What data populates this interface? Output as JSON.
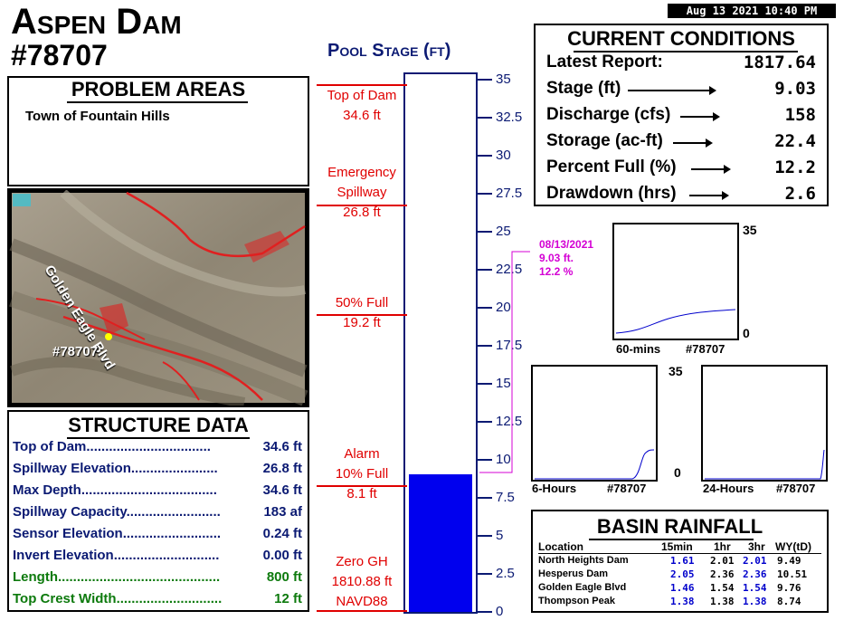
{
  "header": {
    "title_line1": "Aspen Dam",
    "title_line2": "#78707",
    "timestamp": "Aug 13 2021 10:40 PM"
  },
  "problem_areas": {
    "title": "PROBLEM AREAS",
    "text": "Town of Fountain Hills"
  },
  "map": {
    "road_label": "Golden Eagle Blvd",
    "site_label": "#78707"
  },
  "structure_data": {
    "title": "STRUCTURE DATA",
    "rows": [
      {
        "label": "Top of Dam.................................",
        "value": "34.6 ft"
      },
      {
        "label": "Spillway Elevation.......................",
        "value": "26.8 ft"
      },
      {
        "label": "Max Depth....................................",
        "value": "34.6 ft"
      },
      {
        "label": "Spillway Capacity.........................",
        "value": "183 af"
      },
      {
        "label": "Sensor Elevation..........................",
        "value": "0.24 ft"
      },
      {
        "label": "Invert Elevation............................",
        "value": "0.00 ft"
      },
      {
        "label": "Length...........................................",
        "value": "800 ft"
      },
      {
        "label": "Top Crest Width............................",
        "value": "12 ft"
      }
    ]
  },
  "pool_stage": {
    "title": "Pool Stage (ft)",
    "fill_value_ft": 9.03,
    "ymin": 0,
    "ymax": 35,
    "ticks": [
      "35",
      "32.5",
      "30",
      "27.5",
      "25",
      "22.5",
      "20",
      "17.5",
      "15",
      "12.5",
      "10",
      "7.5",
      "5",
      "2.5",
      "0"
    ],
    "markers": [
      {
        "line1": "Top of Dam",
        "line2": "34.6 ft"
      },
      {
        "line1": "Emergency",
        "line2": "Spillway",
        "line3": "26.8 ft"
      },
      {
        "line1": "50% Full",
        "line2": "19.2 ft"
      },
      {
        "line1": "Alarm",
        "line2": "10% Full",
        "line3": "8.1 ft"
      },
      {
        "line1": "Zero GH",
        "line2": "1810.88 ft",
        "line3": "NAVD88"
      }
    ],
    "annotation": {
      "date": "08/13/2021",
      "stage": "9.03 ft.",
      "percent": "12.2 %"
    },
    "colors": {
      "fill": "#0000ee",
      "markers": "#e00000",
      "annotation": "#d400d4"
    }
  },
  "current_conditions": {
    "title": "CURRENT CONDITIONS",
    "rows": [
      {
        "label": "Latest Report:",
        "value": "1817.64",
        "arrow": false
      },
      {
        "label": "Stage (ft)",
        "value": "9.03",
        "arrow": true
      },
      {
        "label": "Discharge (cfs)",
        "value": "158",
        "arrow": true
      },
      {
        "label": "Storage (ac-ft)",
        "value": "22.4",
        "arrow": true
      },
      {
        "label": "Percent Full (%)",
        "value": "12.2",
        "arrow": true
      },
      {
        "label": "Drawdown (hrs)",
        "value": "2.6",
        "arrow": true
      }
    ]
  },
  "mini_charts": [
    {
      "label": "60-mins",
      "id": "#78707",
      "ymax": "35",
      "ymin": "0"
    },
    {
      "label": "6-Hours",
      "id": "#78707",
      "ymax": "35",
      "ymin": "0"
    },
    {
      "label": "24-Hours",
      "id": "#78707"
    }
  ],
  "basin_rainfall": {
    "title": "BASIN RAINFALL",
    "headers": [
      "Location",
      "15min",
      "1hr",
      "3hr",
      "WY(tD)"
    ],
    "rows": [
      {
        "location": "North Heights Dam",
        "m15": "1.61",
        "h1": "2.01",
        "h3": "2.01",
        "wy": "9.49"
      },
      {
        "location": "Hesperus Dam",
        "m15": "2.05",
        "h1": "2.36",
        "h3": "2.36",
        "wy": "10.51"
      },
      {
        "location": "Golden Eagle Blvd",
        "m15": "1.46",
        "h1": "1.54",
        "h3": "1.54",
        "wy": "9.76"
      },
      {
        "location": "Thompson Peak",
        "m15": "1.38",
        "h1": "1.38",
        "h3": "1.38",
        "wy": "8.74"
      }
    ]
  }
}
